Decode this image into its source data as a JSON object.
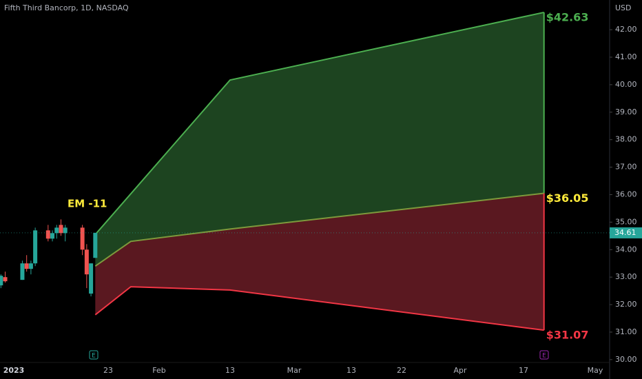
{
  "chart_data": {
    "type": "candlestick",
    "title": "Fifth Third Bancorp, 1D, NASDAQ",
    "currency": "USD",
    "annotation": "EM -11",
    "ylim": [
      29.62,
      43.08
    ],
    "yticks": [
      {
        "value": 30,
        "label": "30.00"
      },
      {
        "value": 31,
        "label": "31.00"
      },
      {
        "value": 32,
        "label": "32.00"
      },
      {
        "value": 33,
        "label": "33.00"
      },
      {
        "value": 34,
        "label": "34.00"
      },
      {
        "value": 35,
        "label": "35.00"
      },
      {
        "value": 36,
        "label": "36.00"
      },
      {
        "value": 37,
        "label": "37.00"
      },
      {
        "value": 38,
        "label": "38.00"
      },
      {
        "value": 39,
        "label": "39.00"
      },
      {
        "value": 40,
        "label": "40.00"
      },
      {
        "value": 41,
        "label": "41.00"
      },
      {
        "value": 42,
        "label": "42.00"
      }
    ],
    "xticks": [
      {
        "value": "2023-01-01",
        "label": "2023"
      },
      {
        "value": "2023-01-23",
        "label": "23"
      },
      {
        "value": "2023-02-01",
        "label": "Feb"
      },
      {
        "value": "2023-02-13",
        "label": "13"
      },
      {
        "value": "2023-03-01",
        "label": "Mar"
      },
      {
        "value": "2023-03-13",
        "label": "13"
      },
      {
        "value": "2023-03-22",
        "label": "22"
      },
      {
        "value": "2023-04-01",
        "label": "Apr"
      },
      {
        "value": "2023-04-17",
        "label": "17"
      },
      {
        "value": "2023-05-01",
        "label": "May"
      }
    ],
    "last_price": 34.61,
    "up_color": "#26a69a",
    "down_color": "#ef5350",
    "x": [
      "2022-12-28",
      "2022-12-29",
      "2022-12-30",
      "2023-01-03",
      "2023-01-04",
      "2023-01-05",
      "2023-01-06",
      "2023-01-09",
      "2023-01-10",
      "2023-01-11",
      "2023-01-12",
      "2023-01-13",
      "2023-01-17",
      "2023-01-18",
      "2023-01-19",
      "2023-01-20"
    ],
    "open": [
      32.8,
      32.7,
      33.0,
      32.9,
      33.5,
      33.3,
      33.5,
      34.7,
      34.4,
      34.6,
      34.9,
      34.6,
      34.8,
      34.0,
      32.4,
      33.7
    ],
    "high": [
      32.95,
      33.1,
      33.2,
      33.6,
      33.8,
      33.6,
      34.8,
      34.9,
      34.7,
      34.9,
      35.1,
      34.9,
      34.9,
      34.2,
      33.5,
      34.61
    ],
    "low": [
      32.6,
      32.6,
      32.8,
      32.9,
      33.2,
      33.1,
      33.4,
      34.3,
      34.3,
      34.4,
      34.5,
      34.3,
      33.8,
      32.6,
      32.3,
      33.7
    ],
    "close": [
      32.7,
      33.05,
      32.85,
      33.5,
      33.3,
      33.5,
      34.7,
      34.4,
      34.6,
      34.8,
      34.6,
      34.8,
      34.0,
      33.1,
      33.5,
      34.61
    ],
    "cone": [
      {
        "name": "upper",
        "color": "#4caf50",
        "x": [
          "2023-01-20",
          "2023-02-13",
          "2023-04-21"
        ],
        "values": [
          34.55,
          40.17,
          42.63
        ],
        "value_labels": [
          null,
          null,
          "$42.63"
        ],
        "label_color": "#4caf50"
      },
      {
        "name": "middle",
        "color": "#7d9a3c",
        "x": [
          "2023-01-20",
          "2023-01-27",
          "2023-02-13",
          "2023-04-21"
        ],
        "values": [
          33.4,
          34.3,
          34.75,
          36.05
        ],
        "value_labels": [
          null,
          null,
          null,
          "$36.05"
        ],
        "label_color": "#ffeb3b"
      },
      {
        "name": "lower",
        "color": "#f23645",
        "x": [
          "2023-01-20",
          "2023-01-27",
          "2023-02-13",
          "2023-04-21"
        ],
        "values": [
          31.63,
          32.65,
          32.53,
          31.07
        ],
        "value_labels": [
          null,
          null,
          null,
          "$31.07"
        ],
        "label_color": "#f23645"
      }
    ],
    "upper_fill": "#1d4420",
    "lower_fill": "#5a1820",
    "event_markers": [
      "E",
      "E"
    ]
  }
}
